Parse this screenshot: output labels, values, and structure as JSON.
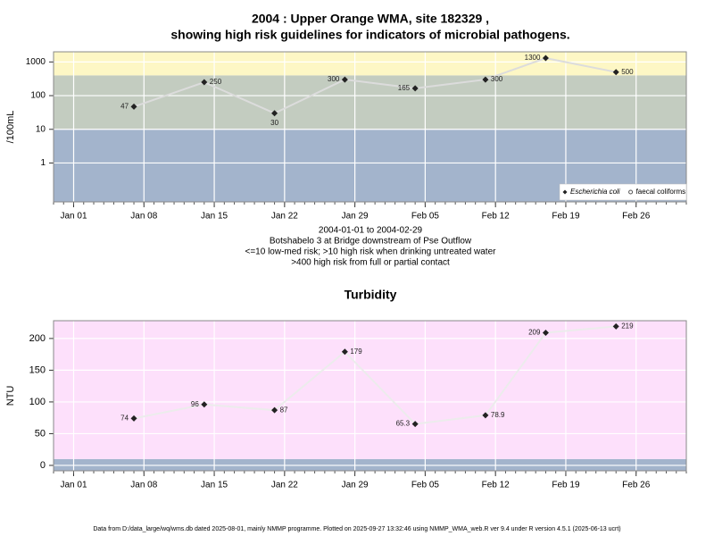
{
  "chart_data": [
    {
      "type": "line",
      "title": [
        "2004 : Upper Orange WMA, site 182329 ,",
        "showing high risk guidelines for indicators of microbial pathogens."
      ],
      "ylabel": "/100mL",
      "log_scale": true,
      "ylim": [
        0.07,
        2000
      ],
      "yticks": [
        1,
        10,
        100,
        1000
      ],
      "xlim": [
        "2003-12-30",
        "2004-03-02"
      ],
      "xticks": [
        {
          "value": "2004-01-01",
          "label": "Jan 01"
        },
        {
          "value": "2004-01-08",
          "label": "Jan 08"
        },
        {
          "value": "2004-01-15",
          "label": "Jan 15"
        },
        {
          "value": "2004-01-22",
          "label": "Jan 22"
        },
        {
          "value": "2004-01-29",
          "label": "Jan 29"
        },
        {
          "value": "2004-02-05",
          "label": "Feb 05"
        },
        {
          "value": "2004-02-12",
          "label": "Feb 12"
        },
        {
          "value": "2004-02-19",
          "label": "Feb 19"
        },
        {
          "value": "2004-02-26",
          "label": "Feb 26"
        }
      ],
      "grid": true,
      "bands": [
        {
          "upto": 10,
          "color": "#a3b4cc"
        },
        {
          "upto": 400,
          "color": "#c3ccc0"
        },
        {
          "color": "#fdf7c5"
        }
      ],
      "x": [
        "2004-01-07",
        "2004-01-14",
        "2004-01-21",
        "2004-01-28",
        "2004-02-04",
        "2004-02-11",
        "2004-02-17",
        "2004-02-24"
      ],
      "series": [
        {
          "name": "Escherichia coli",
          "color": "#222222",
          "line_color": "#dcdcdc",
          "values": [
            47,
            250,
            30,
            300,
            165,
            300,
            1300,
            500
          ]
        },
        {
          "name": "faecal coliforms",
          "color": "#555555",
          "values": [
            null,
            null,
            null,
            null,
            null,
            null,
            null,
            null
          ]
        }
      ],
      "legend": "bottom right",
      "notes": [
        "2004-01-01 to 2004-02-29",
        "Botshabelo 3 at Bridge downstream of Pse Outflow",
        "<=10 low-med risk; >10 high risk when drinking untreated water",
        ">400 high risk from full or partial contact"
      ]
    },
    {
      "type": "line",
      "title": "Turbidity",
      "ylabel": "NTU",
      "log_scale": false,
      "ylim": [
        -8.5,
        228
      ],
      "yticks": [
        0,
        50,
        100,
        150,
        200
      ],
      "xlim": [
        "2003-12-30",
        "2004-03-02"
      ],
      "xticks": [
        {
          "value": "2004-01-01",
          "label": "Jan 01"
        },
        {
          "value": "2004-01-08",
          "label": "Jan 08"
        },
        {
          "value": "2004-01-15",
          "label": "Jan 15"
        },
        {
          "value": "2004-01-22",
          "label": "Jan 22"
        },
        {
          "value": "2004-01-29",
          "label": "Jan 29"
        },
        {
          "value": "2004-02-05",
          "label": "Feb 05"
        },
        {
          "value": "2004-02-12",
          "label": "Feb 12"
        },
        {
          "value": "2004-02-19",
          "label": "Feb 19"
        },
        {
          "value": "2004-02-26",
          "label": "Feb 26"
        }
      ],
      "grid": true,
      "bands": [
        {
          "upto": 10,
          "color": "#a3b4cc"
        },
        {
          "color": "#fde0fb"
        }
      ],
      "x": [
        "2004-01-07",
        "2004-01-14",
        "2004-01-21",
        "2004-01-28",
        "2004-02-04",
        "2004-02-11",
        "2004-02-17",
        "2004-02-24"
      ],
      "series": [
        {
          "name": "Turbidity",
          "color": "#222222",
          "line_color": "#ececec",
          "values": [
            74,
            96,
            87,
            179,
            65.3,
            78.9,
            209,
            219
          ]
        }
      ]
    }
  ],
  "footer": "Data from D:/data_large/wq/wms.db dated 2025-08-01, mainly NMMP programme. Plotted on 2025-09-27 13:32:46 using NMMP_WMA_web.R ver 9.4 under R version 4.5.1 (2025-06-13 ucrt)"
}
